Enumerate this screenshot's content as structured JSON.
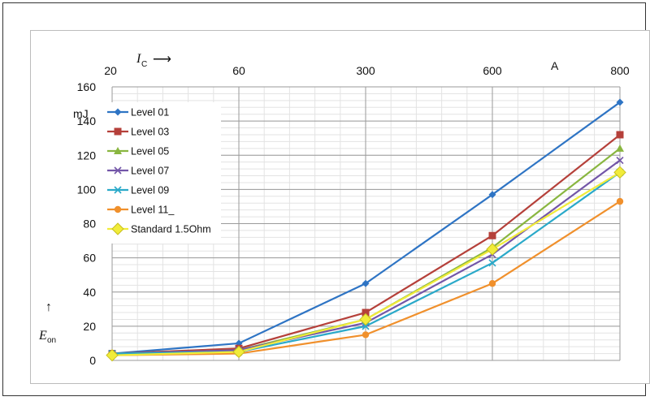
{
  "chart_data": {
    "type": "line",
    "x_top_ticks": [
      "20",
      "60",
      "300",
      "600",
      "800"
    ],
    "x_unit": "A",
    "x_label_main": "I",
    "x_label_sub": "C",
    "x_arrow": "⟶",
    "y_label_main": "E",
    "y_label_sub": "on",
    "y_arrow": "↑",
    "y_unit": "mJ",
    "ylim": [
      0,
      160
    ],
    "y_ticks": [
      0,
      20,
      40,
      60,
      80,
      100,
      120,
      140,
      160
    ],
    "categories": [
      "20",
      "60",
      "300",
      "600",
      "800"
    ],
    "grid": true,
    "legend_position": "top-left",
    "series": [
      {
        "name": "Level 01",
        "color": "#2e74c4",
        "marker": "diamond",
        "values": [
          4,
          10,
          45,
          97,
          151
        ]
      },
      {
        "name": "Level 03",
        "color": "#b5403a",
        "marker": "square",
        "values": [
          4,
          7,
          28,
          73,
          132
        ]
      },
      {
        "name": "Level 05",
        "color": "#89b640",
        "marker": "triangle",
        "values": [
          4,
          6,
          24,
          66,
          124
        ]
      },
      {
        "name": "Level 07",
        "color": "#7356a8",
        "marker": "x",
        "values": [
          4,
          6,
          22,
          62,
          117
        ]
      },
      {
        "name": "Level 09",
        "color": "#2aa9c9",
        "marker": "x",
        "values": [
          4,
          5,
          20,
          57,
          110
        ]
      },
      {
        "name": "Level 11_",
        "color": "#f0902c",
        "marker": "circle",
        "values": [
          3,
          4,
          15,
          45,
          93
        ]
      },
      {
        "name": "Standard 1.5Ohm",
        "color": "#f1ec3a",
        "marker": "bigdiamond",
        "values": [
          3,
          5,
          24,
          65,
          110
        ]
      }
    ]
  }
}
